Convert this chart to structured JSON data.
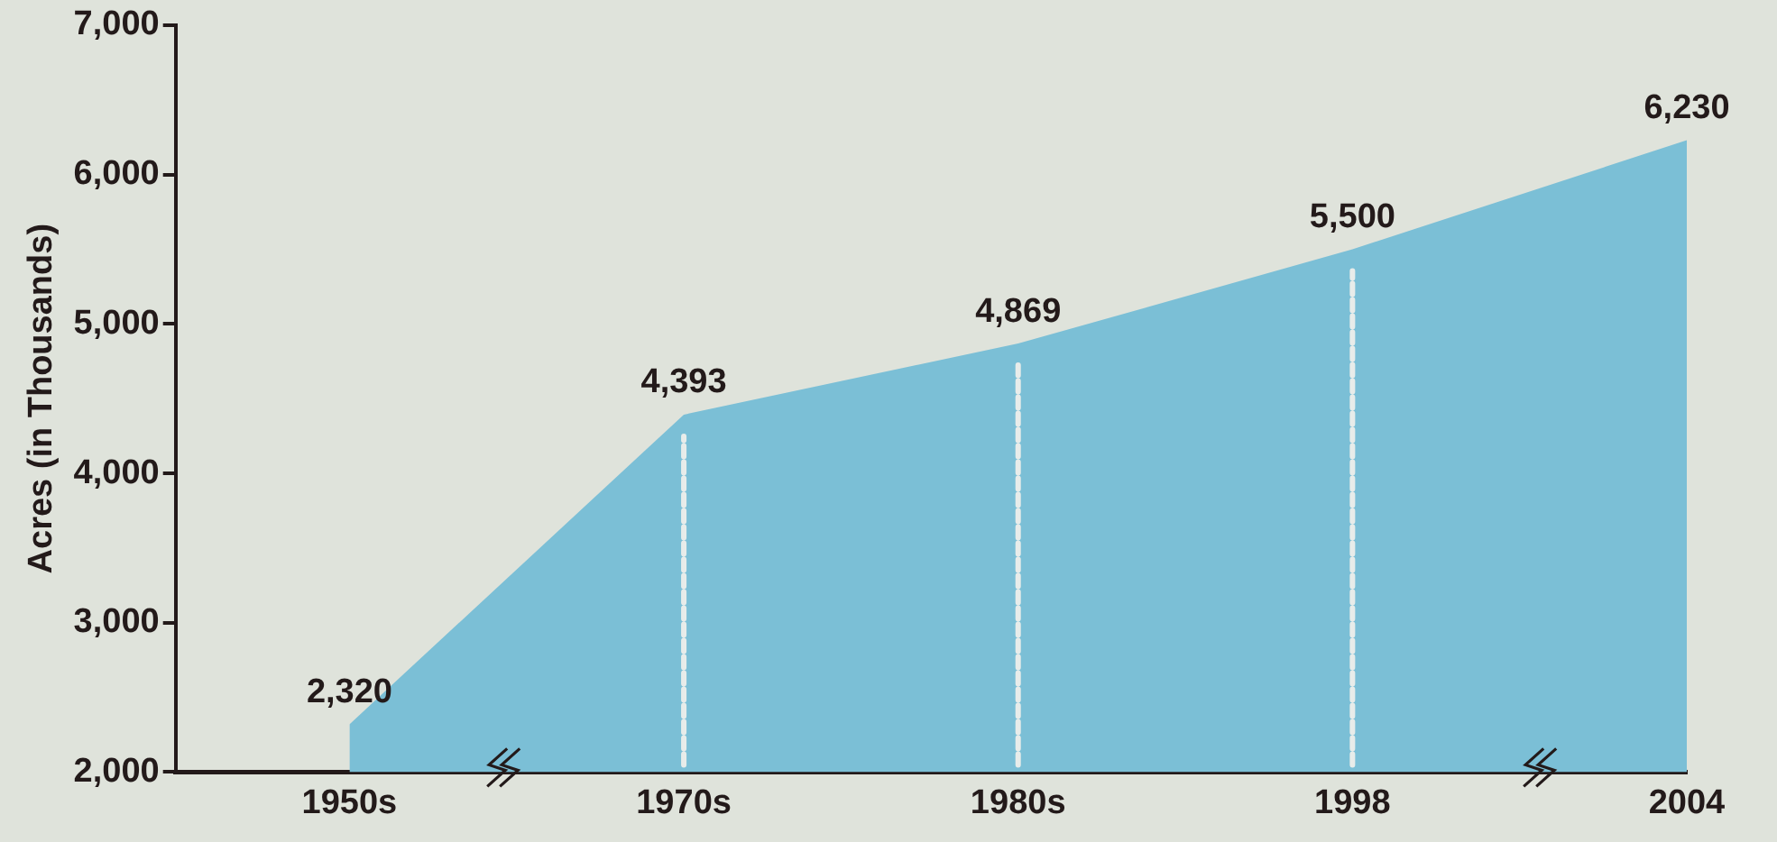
{
  "chart_data": {
    "type": "area",
    "ylabel": "Acres (in Thousands)",
    "categories": [
      "1950s",
      "1970s",
      "1980s",
      "1998",
      "2004"
    ],
    "series": [
      {
        "color": "#7bbfd6",
        "values": [
          2320,
          4393,
          4869,
          5500,
          6230
        ],
        "value_labels": [
          "2,320",
          "4,393",
          "4,869",
          "5,500",
          "6,230"
        ]
      }
    ],
    "ylim": [
      2000,
      7000
    ],
    "yticks": [
      {
        "value": 2000,
        "label": "2,000"
      },
      {
        "value": 3000,
        "label": "3,000"
      },
      {
        "value": 4000,
        "label": "4,000"
      },
      {
        "value": 5000,
        "label": "5,000"
      },
      {
        "value": 6000,
        "label": "6,000"
      },
      {
        "value": 7000,
        "label": "7,000"
      }
    ],
    "grid": false,
    "legend": false
  }
}
